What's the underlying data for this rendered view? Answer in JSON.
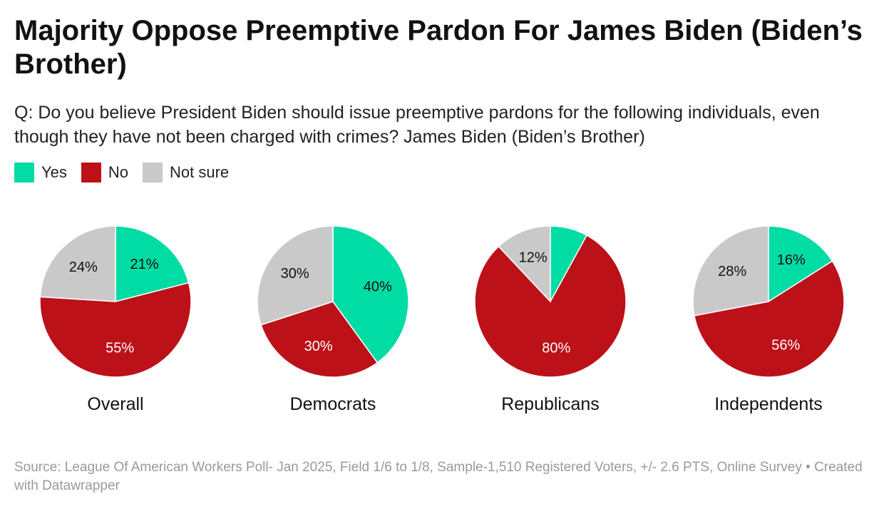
{
  "header": {
    "title": "Majority Oppose Preemptive Pardon For James Biden (Biden’s Brother)",
    "subtitle": "Q: Do you believe President Biden should issue preemptive pardons for the following individuals, even though they have not been charged with crimes? James Biden (Biden’s Brother)"
  },
  "legend": [
    {
      "label": "Yes",
      "color": "#00dca4"
    },
    {
      "label": "No",
      "color": "#bc1119"
    },
    {
      "label": "Not sure",
      "color": "#c9c9c9"
    }
  ],
  "chart_data": {
    "type": "pie",
    "categories": [
      "Yes",
      "No",
      "Not sure"
    ],
    "colors": [
      "#00dca4",
      "#bc1119",
      "#c9c9c9"
    ],
    "pies": [
      {
        "name": "Overall",
        "values": [
          21,
          55,
          24
        ],
        "labels": [
          "21%",
          "55%",
          "24%"
        ]
      },
      {
        "name": "Democrats",
        "values": [
          40,
          30,
          30
        ],
        "labels": [
          "40%",
          "30%",
          "30%"
        ]
      },
      {
        "name": "Republicans",
        "values": [
          8,
          80,
          12
        ],
        "labels": [
          "",
          "80%",
          "12%"
        ]
      },
      {
        "name": "Independents",
        "values": [
          16,
          56,
          28
        ],
        "labels": [
          "16%",
          "56%",
          "28%"
        ]
      }
    ]
  },
  "footer": {
    "source": "Source: League Of American Workers Poll- Jan 2025, Field 1/6 to 1/8, Sample-1,510 Registered Voters, +/- 2.6 PTS, Online Survey • Created with Datawrapper"
  }
}
